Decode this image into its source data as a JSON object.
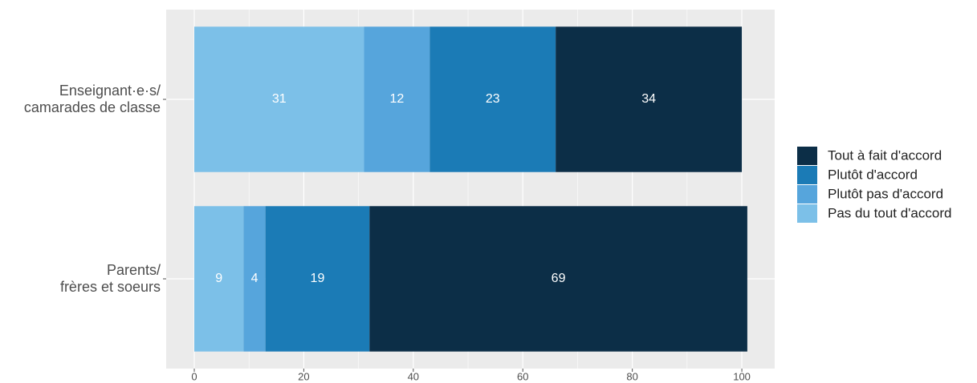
{
  "chart_data": {
    "type": "stacked-barh",
    "categories": [
      "Enseignant·e·s/\ncamarades de classe",
      "Parents/\nfrères et soeurs"
    ],
    "series": [
      {
        "name": "Pas du tout d'accord",
        "color": "#7cc0e8",
        "values": [
          31,
          9
        ]
      },
      {
        "name": "Plutôt pas d'accord",
        "color": "#56a5dc",
        "values": [
          12,
          4
        ]
      },
      {
        "name": "Plutôt d'accord",
        "color": "#1b7bb6",
        "values": [
          23,
          19
        ]
      },
      {
        "name": "Tout à fait d'accord",
        "color": "#0c2e47",
        "values": [
          34,
          69
        ]
      }
    ],
    "xlim": [
      -5.13,
      106
    ],
    "xticks": [
      0,
      20,
      40,
      60,
      80,
      100
    ],
    "grid": true,
    "legend": "right"
  }
}
